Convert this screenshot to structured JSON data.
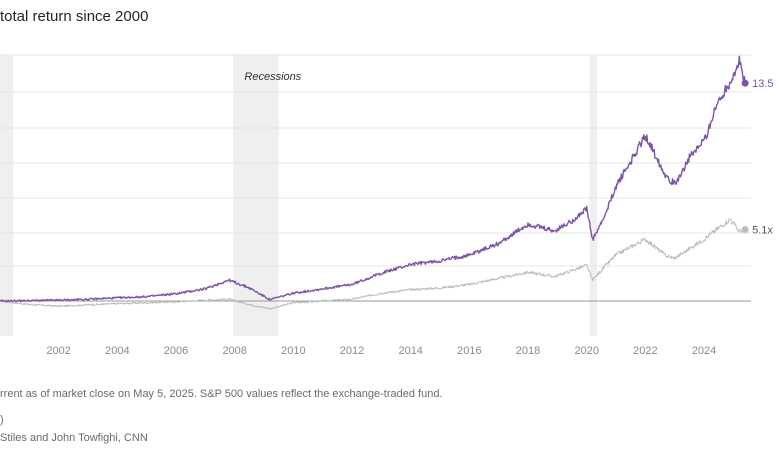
{
  "page": {
    "title": "total return since 2000",
    "note": "rrent as of market close on May 5, 2025. S&P 500 values reflect the exchange-traded fund.",
    "source_fragment": ")",
    "credit": "Stiles and John Towfighi, CNN"
  },
  "colors": {
    "purple": "#7b55a6",
    "gray": "#bdbdbd",
    "recession": "#efefef",
    "baseline": "#999999",
    "grid": "#e6e6e6"
  },
  "chart_data": {
    "type": "line",
    "title": "total return since 2000",
    "xlabel": "",
    "ylabel": "",
    "x_ticks": [
      "2002",
      "2004",
      "2006",
      "2008",
      "2010",
      "2012",
      "2014",
      "2016",
      "2018",
      "2020",
      "2022",
      "2024"
    ],
    "xlim": [
      2000.0,
      2025.6
    ],
    "ylim": [
      0.55,
      15.0
    ],
    "annotations": [
      {
        "text": "Recessions",
        "x": 2009.3
      }
    ],
    "recessions": [
      [
        2000.0,
        2000.45
      ],
      [
        2007.95,
        2009.5
      ],
      [
        2020.1,
        2020.35
      ]
    ],
    "series": [
      {
        "color": "purple",
        "end_label": "13.5",
        "points": [
          [
            2000.0,
            1.0
          ],
          [
            2001.0,
            1.02
          ],
          [
            2002.0,
            1.05
          ],
          [
            2003.0,
            1.1
          ],
          [
            2004.0,
            1.18
          ],
          [
            2005.0,
            1.25
          ],
          [
            2006.0,
            1.42
          ],
          [
            2007.0,
            1.7
          ],
          [
            2007.8,
            2.2
          ],
          [
            2008.5,
            1.75
          ],
          [
            2009.2,
            1.08
          ],
          [
            2010.0,
            1.45
          ],
          [
            2011.0,
            1.7
          ],
          [
            2012.0,
            1.95
          ],
          [
            2013.0,
            2.6
          ],
          [
            2014.0,
            3.1
          ],
          [
            2015.0,
            3.3
          ],
          [
            2016.0,
            3.65
          ],
          [
            2017.0,
            4.3
          ],
          [
            2018.0,
            5.4
          ],
          [
            2018.9,
            5.0
          ],
          [
            2019.5,
            5.6
          ],
          [
            2020.0,
            6.3
          ],
          [
            2020.2,
            4.5
          ],
          [
            2020.6,
            5.8
          ],
          [
            2021.0,
            7.6
          ],
          [
            2021.5,
            9.0
          ],
          [
            2022.0,
            10.5
          ],
          [
            2022.7,
            8.2
          ],
          [
            2023.0,
            7.7
          ],
          [
            2023.5,
            9.2
          ],
          [
            2024.0,
            10.2
          ],
          [
            2024.5,
            12.5
          ],
          [
            2024.9,
            13.6
          ],
          [
            2025.2,
            14.7
          ],
          [
            2025.4,
            13.5
          ]
        ]
      },
      {
        "color": "gray",
        "end_label": "5.1x",
        "points": [
          [
            2000.0,
            1.0
          ],
          [
            2001.0,
            0.8
          ],
          [
            2002.0,
            0.7
          ],
          [
            2003.0,
            0.78
          ],
          [
            2004.0,
            0.85
          ],
          [
            2005.0,
            0.9
          ],
          [
            2006.0,
            0.95
          ],
          [
            2007.0,
            1.05
          ],
          [
            2007.8,
            1.1
          ],
          [
            2008.5,
            0.8
          ],
          [
            2009.2,
            0.55
          ],
          [
            2010.0,
            0.9
          ],
          [
            2011.0,
            1.0
          ],
          [
            2012.0,
            1.1
          ],
          [
            2013.0,
            1.45
          ],
          [
            2014.0,
            1.65
          ],
          [
            2015.0,
            1.75
          ],
          [
            2016.0,
            1.95
          ],
          [
            2017.0,
            2.3
          ],
          [
            2018.0,
            2.65
          ],
          [
            2018.9,
            2.4
          ],
          [
            2019.5,
            2.75
          ],
          [
            2020.0,
            3.05
          ],
          [
            2020.2,
            2.2
          ],
          [
            2020.6,
            2.95
          ],
          [
            2021.0,
            3.65
          ],
          [
            2021.5,
            4.1
          ],
          [
            2022.0,
            4.55
          ],
          [
            2022.7,
            3.6
          ],
          [
            2023.0,
            3.45
          ],
          [
            2023.5,
            4.0
          ],
          [
            2024.0,
            4.55
          ],
          [
            2024.5,
            5.2
          ],
          [
            2024.9,
            5.7
          ],
          [
            2025.2,
            5.0
          ],
          [
            2025.4,
            5.1
          ]
        ]
      }
    ]
  }
}
